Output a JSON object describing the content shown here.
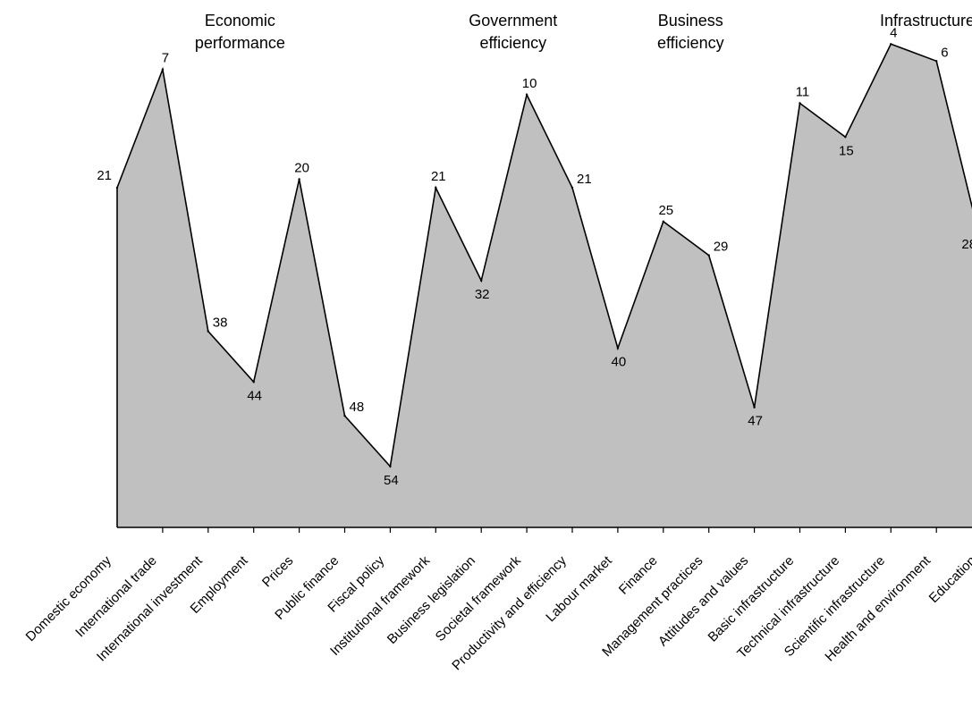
{
  "chart_data": {
    "type": "area",
    "title": "",
    "xlabel": "",
    "ylabel": "",
    "y_reversed": true,
    "ylim": [
      1,
      63
    ],
    "grid": false,
    "legend": "none",
    "fill_color": "#c0c0c0",
    "line_color": "#000000",
    "groups": [
      {
        "lines": [
          "Economic",
          "performance"
        ],
        "categories": [
          "Domestic economy",
          "International trade",
          "International investment",
          "Employment",
          "Prices"
        ]
      },
      {
        "lines": [
          "Government",
          "efficiency"
        ],
        "categories": [
          "Public finance",
          "Fiscal policy",
          "Institutional framework",
          "Business legislation",
          "Societal framework"
        ]
      },
      {
        "lines": [
          "Business",
          "efficiency"
        ],
        "categories": [
          "Productivity and efficiency",
          "Labour market",
          "Finance",
          "Management practices",
          "Attitudes and values"
        ]
      },
      {
        "lines": [
          "Infrastructure"
        ],
        "categories": [
          "Basic infrastructure",
          "Technical infrastructure",
          "Scientific infrastructure",
          "Health and environment",
          "Education"
        ]
      }
    ],
    "categories": [
      "Domestic economy",
      "International trade",
      "International investment",
      "Employment",
      "Prices",
      "Public finance",
      "Fiscal policy",
      "Institutional framework",
      "Business legislation",
      "Societal framework",
      "Productivity and efficiency",
      "Labour market",
      "Finance",
      "Management practices",
      "Attitudes and values",
      "Basic infrastructure",
      "Technical infrastructure",
      "Scientific infrastructure",
      "Health and environment",
      "Education"
    ],
    "values": [
      21,
      7,
      38,
      44,
      20,
      48,
      54,
      21,
      32,
      10,
      21,
      40,
      25,
      29,
      47,
      11,
      15,
      4,
      6,
      28
    ],
    "data_labels": [
      "21",
      "7",
      "38",
      "44",
      "20",
      "48",
      "54",
      "21",
      "32",
      "10",
      "21",
      "40",
      "25",
      "29",
      "47",
      "11",
      "15",
      "4",
      "6",
      "28"
    ]
  }
}
